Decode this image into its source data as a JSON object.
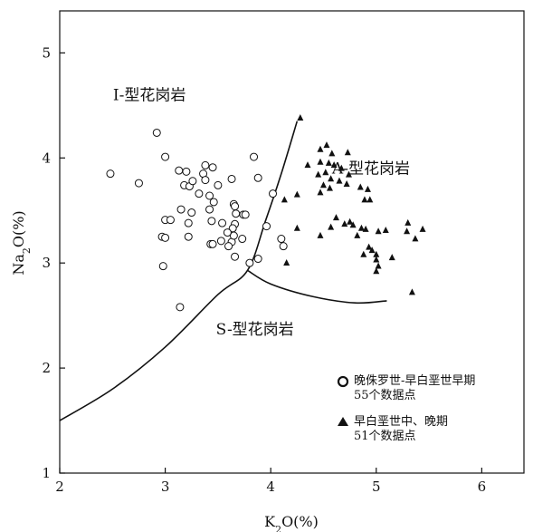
{
  "chart_data": {
    "type": "scatter",
    "xlabel_parts": [
      "K",
      "2",
      "O(%)"
    ],
    "ylabel_parts": [
      "Na",
      "2",
      "O(%)"
    ],
    "xlim": [
      2,
      6.4
    ],
    "ylim": [
      1,
      5.4
    ],
    "x_ticks": [
      2,
      3,
      4,
      5,
      6
    ],
    "y_ticks": [
      1,
      2,
      3,
      4,
      5
    ],
    "regions": [
      {
        "label": "I-型花岗岩",
        "x": 2.85,
        "y": 4.55
      },
      {
        "label": "A-型花岗岩",
        "x": 4.95,
        "y": 3.85
      },
      {
        "label": "S-型花岗岩",
        "x": 3.85,
        "y": 2.32
      }
    ],
    "boundary_curves": [
      {
        "points": [
          [
            2.0,
            1.5
          ],
          [
            2.5,
            1.8
          ],
          [
            3.0,
            2.2
          ],
          [
            3.5,
            2.7
          ],
          [
            3.78,
            2.93
          ],
          [
            3.95,
            3.4
          ],
          [
            4.1,
            3.85
          ],
          [
            4.25,
            4.35
          ]
        ]
      },
      {
        "points": [
          [
            3.78,
            2.93
          ],
          [
            4.0,
            2.8
          ],
          [
            4.4,
            2.68
          ],
          [
            4.8,
            2.62
          ],
          [
            5.1,
            2.64
          ]
        ]
      }
    ],
    "series": [
      {
        "name": "晚侏罗世-早白垩世早期",
        "marker": "circle",
        "count_label": "55个数据点",
        "points": [
          [
            2.48,
            3.85
          ],
          [
            2.75,
            3.76
          ],
          [
            2.92,
            4.24
          ],
          [
            3.0,
            4.01
          ],
          [
            3.13,
            3.88
          ],
          [
            3.18,
            3.74
          ],
          [
            3.2,
            3.87
          ],
          [
            3.23,
            3.73
          ],
          [
            3.26,
            3.78
          ],
          [
            3.36,
            3.85
          ],
          [
            3.38,
            3.93
          ],
          [
            3.45,
            3.91
          ],
          [
            3.38,
            3.79
          ],
          [
            3.42,
            3.64
          ],
          [
            3.46,
            3.58
          ],
          [
            3.5,
            3.74
          ],
          [
            3.63,
            3.8
          ],
          [
            3.65,
            3.56
          ],
          [
            3.66,
            3.54
          ],
          [
            3.67,
            3.47
          ],
          [
            3.74,
            3.46
          ],
          [
            3.76,
            3.46
          ],
          [
            3.84,
            4.01
          ],
          [
            3.88,
            3.81
          ],
          [
            4.02,
            3.66
          ],
          [
            3.0,
            3.41
          ],
          [
            3.05,
            3.41
          ],
          [
            3.22,
            3.38
          ],
          [
            3.15,
            3.51
          ],
          [
            3.42,
            3.51
          ],
          [
            3.44,
            3.4
          ],
          [
            3.54,
            3.38
          ],
          [
            3.66,
            3.37
          ],
          [
            2.97,
            3.25
          ],
          [
            3.0,
            3.24
          ],
          [
            3.22,
            3.25
          ],
          [
            3.43,
            3.18
          ],
          [
            3.45,
            3.18
          ],
          [
            3.53,
            3.21
          ],
          [
            3.63,
            3.2
          ],
          [
            3.65,
            3.26
          ],
          [
            3.6,
            3.16
          ],
          [
            3.66,
            3.06
          ],
          [
            3.88,
            3.04
          ],
          [
            3.96,
            3.35
          ],
          [
            4.1,
            3.23
          ],
          [
            4.12,
            3.16
          ],
          [
            2.98,
            2.97
          ],
          [
            3.14,
            2.58
          ],
          [
            3.8,
            3.0
          ],
          [
            3.73,
            3.23
          ],
          [
            3.64,
            3.33
          ],
          [
            3.25,
            3.48
          ],
          [
            3.59,
            3.29
          ],
          [
            3.32,
            3.66
          ]
        ]
      },
      {
        "name": "早白垩世中、晚期",
        "marker": "triangle",
        "count_label": "51个数据点",
        "points": [
          [
            4.28,
            4.38
          ],
          [
            4.47,
            4.08
          ],
          [
            4.53,
            4.12
          ],
          [
            4.58,
            4.04
          ],
          [
            4.73,
            4.05
          ],
          [
            4.35,
            3.93
          ],
          [
            4.47,
            3.96
          ],
          [
            4.55,
            3.95
          ],
          [
            4.6,
            3.93
          ],
          [
            4.67,
            3.9
          ],
          [
            4.74,
            3.84
          ],
          [
            4.45,
            3.84
          ],
          [
            4.52,
            3.86
          ],
          [
            4.57,
            3.8
          ],
          [
            4.65,
            3.78
          ],
          [
            4.5,
            3.74
          ],
          [
            4.56,
            3.71
          ],
          [
            4.72,
            3.75
          ],
          [
            4.85,
            3.72
          ],
          [
            4.92,
            3.7
          ],
          [
            4.25,
            3.65
          ],
          [
            4.47,
            3.67
          ],
          [
            4.89,
            3.6
          ],
          [
            4.94,
            3.6
          ],
          [
            4.13,
            3.6
          ],
          [
            4.62,
            3.43
          ],
          [
            4.7,
            3.37
          ],
          [
            4.75,
            3.39
          ],
          [
            4.78,
            3.36
          ],
          [
            4.86,
            3.33
          ],
          [
            4.9,
            3.32
          ],
          [
            5.02,
            3.3
          ],
          [
            5.09,
            3.31
          ],
          [
            5.3,
            3.38
          ],
          [
            5.29,
            3.3
          ],
          [
            5.37,
            3.23
          ],
          [
            5.44,
            3.32
          ],
          [
            4.47,
            3.26
          ],
          [
            4.57,
            3.34
          ],
          [
            4.82,
            3.26
          ],
          [
            4.93,
            3.15
          ],
          [
            4.96,
            3.12
          ],
          [
            4.88,
            3.08
          ],
          [
            5.0,
            3.08
          ],
          [
            5.0,
            3.03
          ],
          [
            5.02,
            2.97
          ],
          [
            5.15,
            3.05
          ],
          [
            5.0,
            2.92
          ],
          [
            4.15,
            3.0
          ],
          [
            5.34,
            2.72
          ],
          [
            4.25,
            3.33
          ]
        ]
      }
    ]
  }
}
